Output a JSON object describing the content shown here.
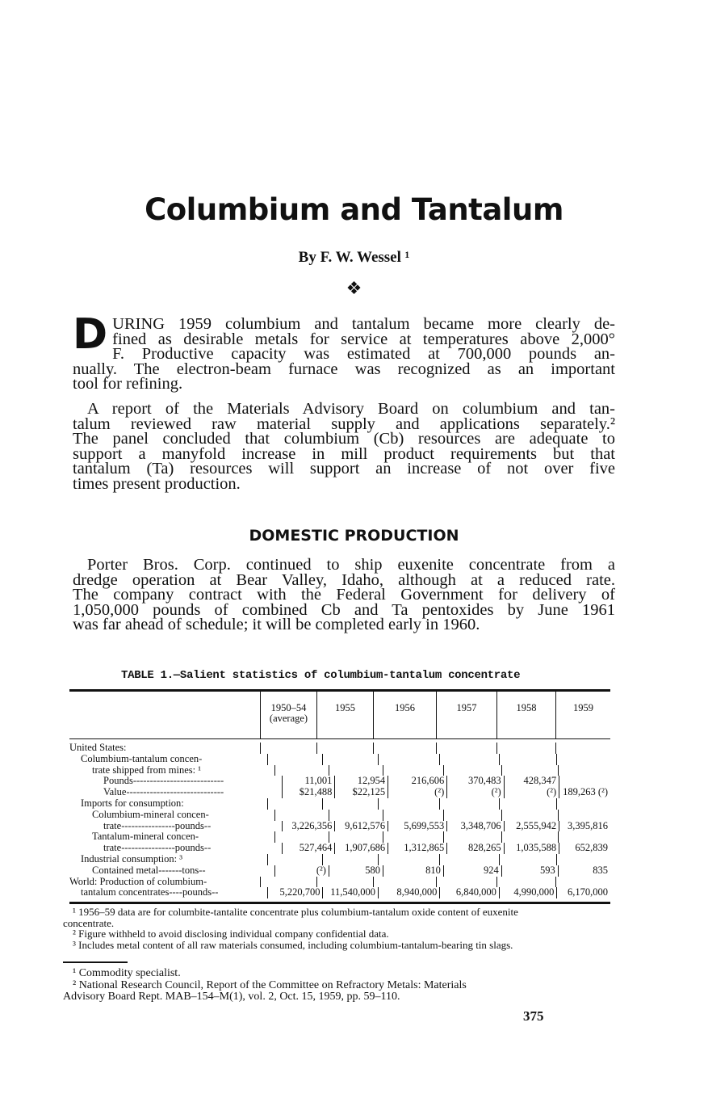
{
  "title": "Columbium and Tantalum",
  "byline": "By F. W. Wessel ¹",
  "ornament": "❖",
  "para1": {
    "dropcap": "D",
    "lines": [
      "URING 1959 columbium and tantalum became more clearly de-",
      "fined as desirable metals for service at temperatures above 2,000°",
      "F.  Productive capacity was estimated at 700,000 pounds an-",
      "nually.  The electron-beam furnace was recognized as an important",
      "tool for refining."
    ]
  },
  "para2": {
    "lines": [
      "A report of the Materials Advisory Board on columbium and tan-",
      "talum reviewed raw material supply and applications separately.²",
      "The panel concluded that columbium (Cb) resources are adequate to",
      "support a manyfold increase in mill product requirements but that",
      "tantalum (Ta) resources will support an increase of not over five",
      "times present production."
    ]
  },
  "heading": "DOMESTIC PRODUCTION",
  "para3": {
    "lines": [
      "Porter Bros. Corp. continued to ship euxenite concentrate from a",
      "dredge operation at Bear Valley, Idaho, although at a reduced rate.",
      "The company contract with the Federal Government for delivery of",
      "1,050,000 pounds of combined Cb and Ta pentoxides by June 1961",
      "was far ahead of schedule; it will be completed early in 1960."
    ]
  },
  "table": {
    "caption": "TABLE 1.—Salient statistics of columbium-tantalum concentrate",
    "columns": [
      "1950–54\n(average)",
      "1955",
      "1956",
      "1957",
      "1958",
      "1959"
    ],
    "rows": [
      {
        "label": "United States:",
        "indent": 0
      },
      {
        "label": "Columbium-tantalum    concen-",
        "indent": 1
      },
      {
        "label": "trate shipped from mines: ¹",
        "indent": 2
      },
      {
        "label": "Pounds---------------------------",
        "indent": 3,
        "values": [
          "11,001",
          "12,954",
          "216,606",
          "370,483",
          "428,347",
          ""
        ]
      },
      {
        "label": "Value-----------------------------",
        "indent": 3,
        "values": [
          "$21,488",
          "$22,125",
          "(²)",
          "(²)",
          "(²)",
          "189,263 (²)"
        ]
      },
      {
        "label": "Imports for consumption:",
        "indent": 1
      },
      {
        "label": "Columbium-mineral concen-",
        "indent": 2
      },
      {
        "label": "trate----------------pounds--",
        "indent": 3,
        "values": [
          "3,226,356",
          "9,612,576",
          "5,699,553",
          "3,348,706",
          "2,555,942",
          "3,395,816"
        ]
      },
      {
        "label": "Tantalum-mineral   concen-",
        "indent": 2
      },
      {
        "label": "trate----------------pounds--",
        "indent": 3,
        "values": [
          "527,464",
          "1,907,686",
          "1,312,865",
          "828,265",
          "1,035,588",
          "652,839"
        ]
      },
      {
        "label": "Industrial consumption: ³",
        "indent": 1
      },
      {
        "label": "Contained metal-------tons--",
        "indent": 2,
        "values": [
          "(²)",
          "580",
          "810",
          "924",
          "593",
          "835"
        ]
      },
      {
        "label": "World:  Production of columbium-",
        "indent": 0
      },
      {
        "label": "tantalum concentrates----pounds--",
        "indent": 1,
        "values": [
          "5,220,700",
          "11,540,000",
          "8,940,000",
          "6,840,000",
          "4,990,000",
          "6,170,000"
        ]
      }
    ],
    "notes": [
      "¹ 1956–59 data are for columbite-tantalite concentrate plus columbium-tantalum oxide content of euxenite",
      "concentrate.",
      "² Figure withheld to avoid disclosing individual company confidential data.",
      "³ Includes metal content of all raw materials consumed, including columbium-tantalum-bearing tin slags."
    ]
  },
  "footnotes": [
    "¹ Commodity specialist.",
    "² National Research Council, Report of the Committee on Refractory Metals: Materials",
    "Advisory Board Rept. MAB–154–M(1), vol. 2, Oct. 15, 1959, pp. 59–110."
  ],
  "page_number": "375"
}
